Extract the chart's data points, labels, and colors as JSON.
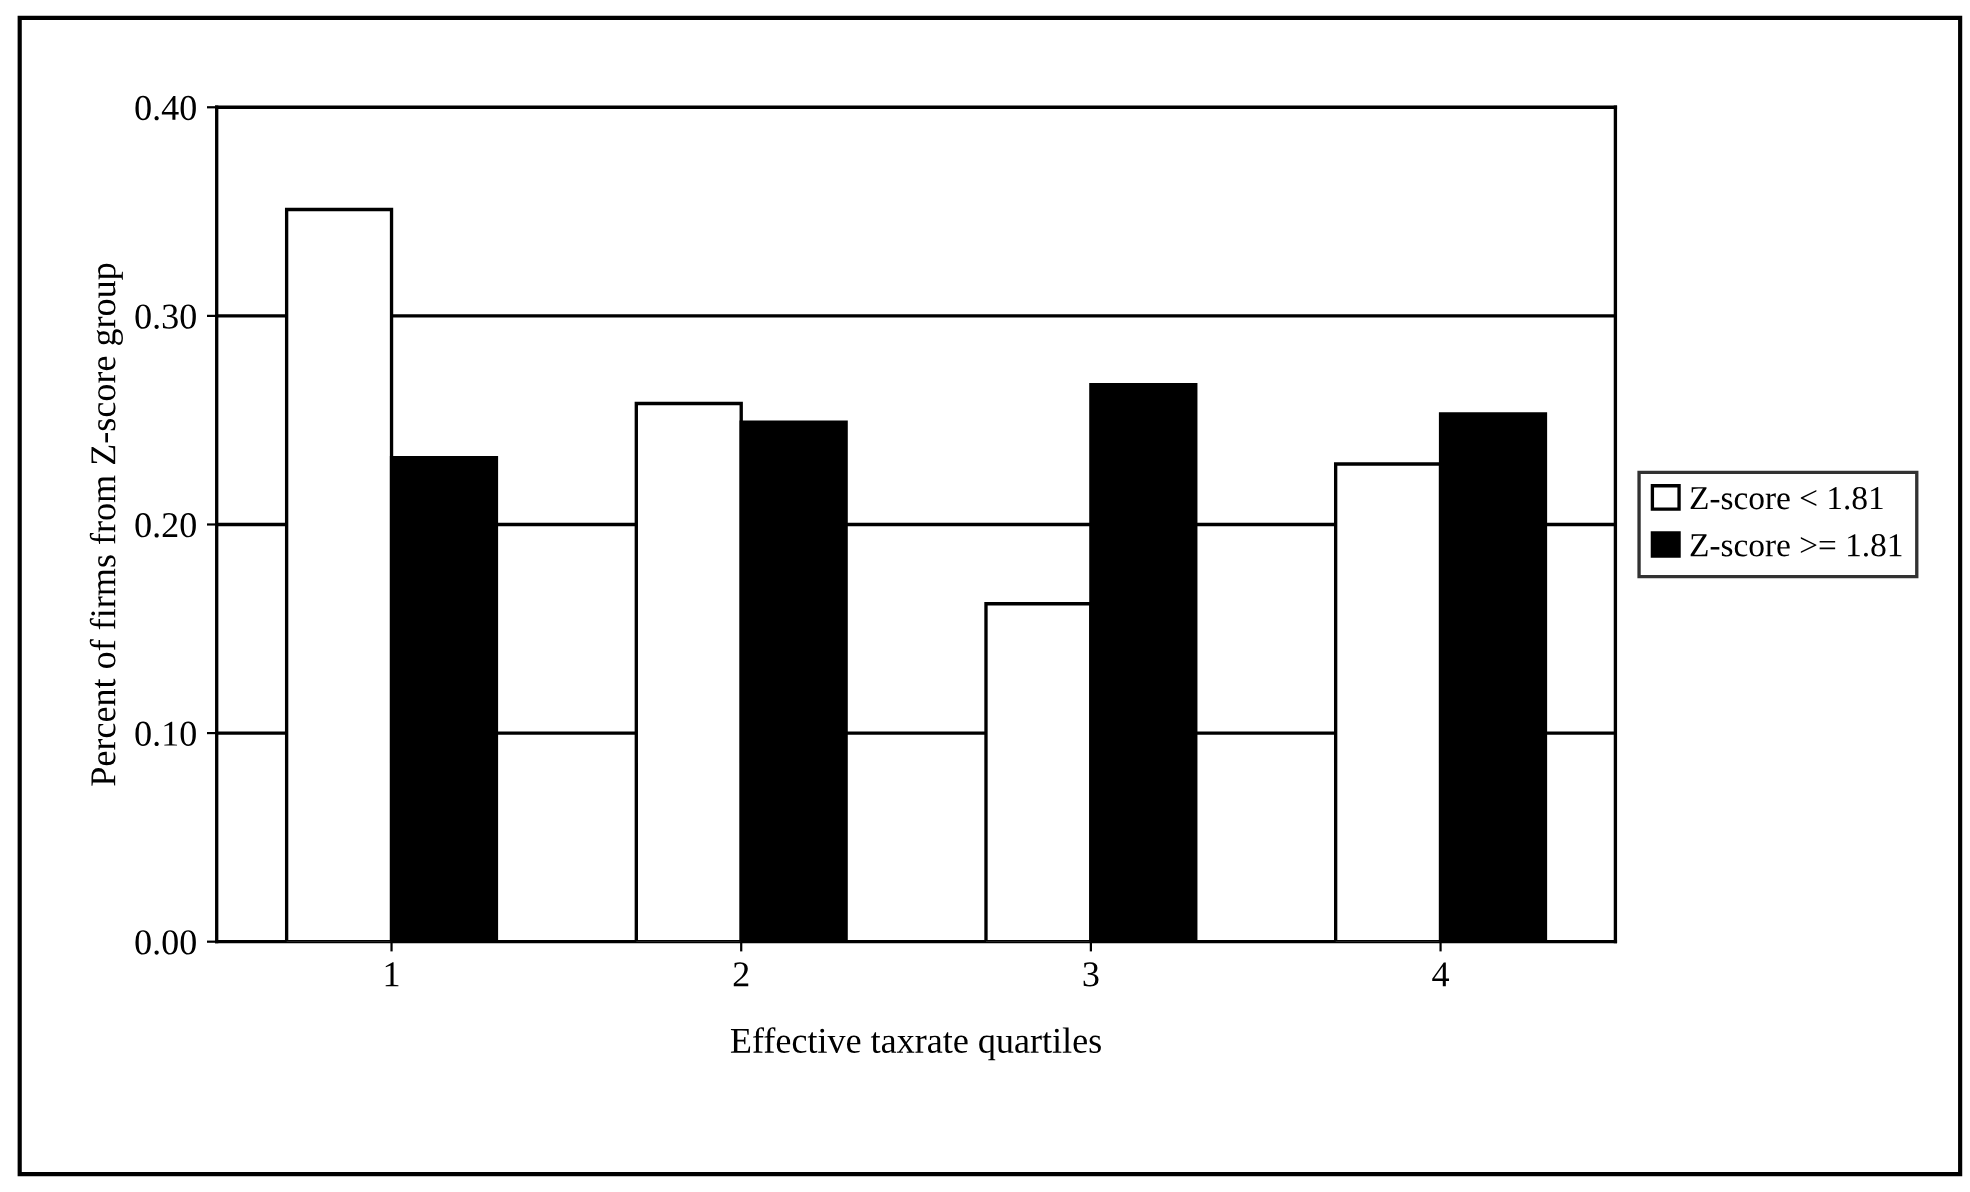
{
  "chart_data": {
    "type": "bar",
    "xlabel": "Effective taxrate quartiles",
    "ylabel": "Percent of firms from Z-score group",
    "categories": [
      "1",
      "2",
      "3",
      "4"
    ],
    "series": [
      {
        "name": "Z-score < 1.81",
        "color": "#ffffff",
        "values": [
          0.351,
          0.258,
          0.162,
          0.229
        ]
      },
      {
        "name": "Z-score >= 1.81",
        "color": "#000000",
        "values": [
          0.232,
          0.249,
          0.267,
          0.253
        ]
      }
    ],
    "ylim": [
      0,
      0.4
    ],
    "yticks": [
      {
        "value": 0,
        "label": "0.00"
      },
      {
        "value": 0.1,
        "label": "0.10"
      },
      {
        "value": 0.2,
        "label": "0.20"
      },
      {
        "value": 0.3,
        "label": "0.30"
      },
      {
        "value": 0.4,
        "label": "0.40"
      }
    ],
    "grid": "y",
    "legend": "right"
  }
}
